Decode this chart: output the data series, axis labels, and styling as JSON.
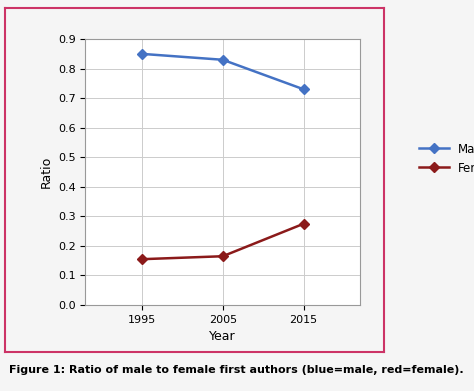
{
  "years": [
    1995,
    2005,
    2015
  ],
  "male_ratio": [
    0.85,
    0.83,
    0.73
  ],
  "female_ratio": [
    0.155,
    0.165,
    0.275
  ],
  "male_color": "#4472C4",
  "female_color": "#8B1A1A",
  "male_label": "Male",
  "female_label": "Female",
  "xlabel": "Year",
  "ylabel": "Ratio",
  "ylim": [
    0.0,
    0.9
  ],
  "yticks": [
    0.0,
    0.1,
    0.2,
    0.3,
    0.4,
    0.5,
    0.6,
    0.7,
    0.8,
    0.9
  ],
  "xlim": [
    1988,
    2022
  ],
  "xticks": [
    1995,
    2005,
    2015
  ],
  "grid_color": "#cccccc",
  "background_color": "#ffffff",
  "border_color": "#cc3366",
  "figure_bg": "#f5f5f5",
  "marker": "D",
  "marker_size": 5,
  "line_width": 1.8,
  "caption": "Figure 1: Ratio of male to female first authors (blue=male, red=female).",
  "caption_fontsize": 8
}
